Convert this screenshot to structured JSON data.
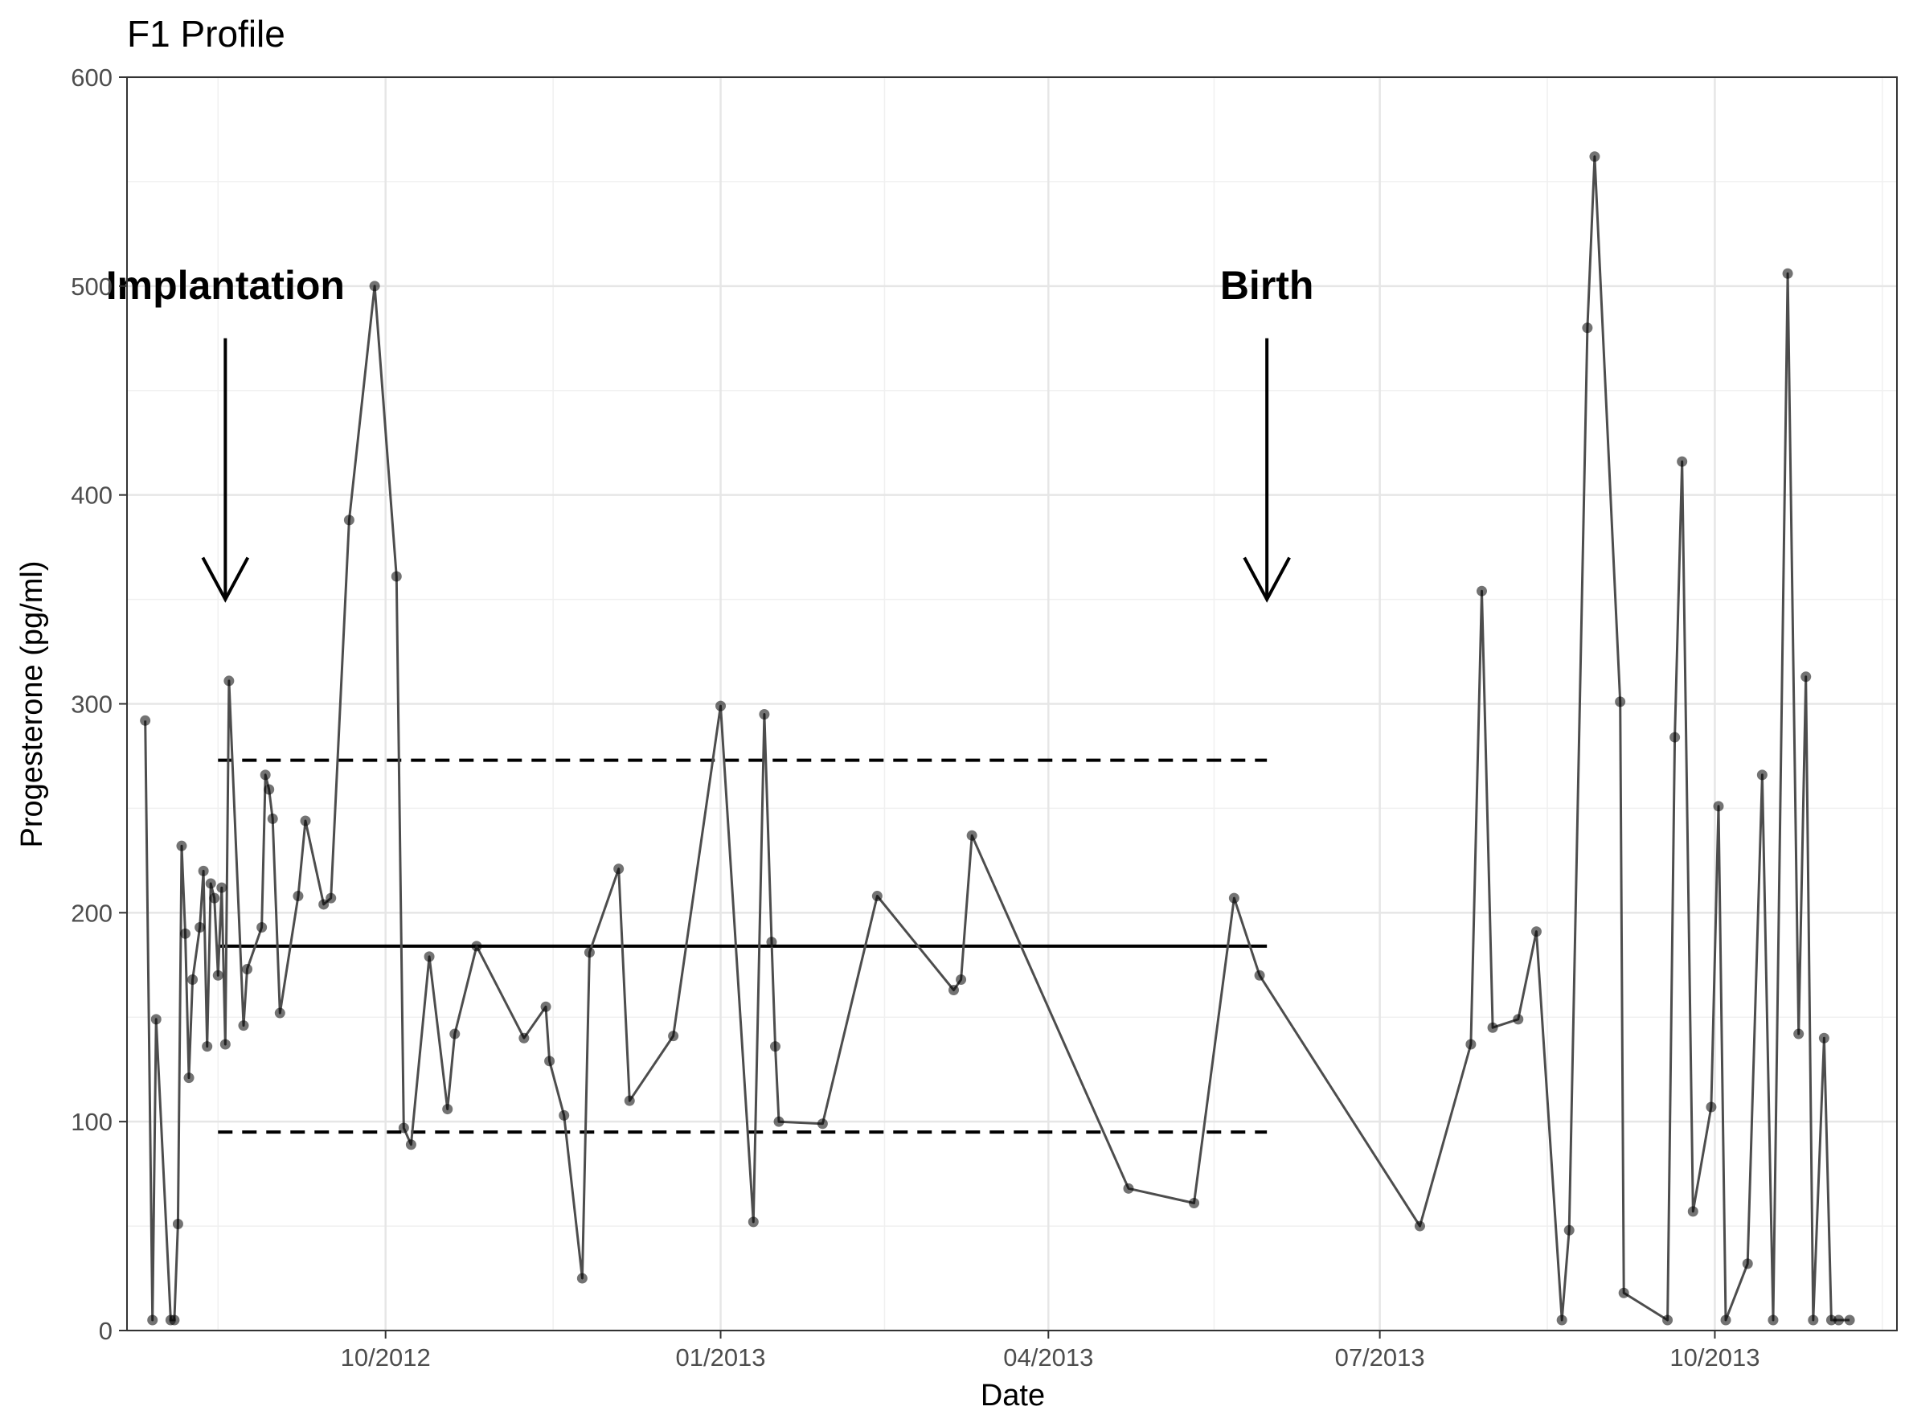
{
  "chart_data": {
    "type": "line",
    "title": "F1 Profile",
    "xlabel": "Date",
    "ylabel": "Progesterone (pg/ml)",
    "xlim": [
      "2012-07-22",
      "2013-11-20"
    ],
    "ylim": [
      0,
      600
    ],
    "x_ticks": [
      "2012-10-01",
      "2013-01-01",
      "2013-04-01",
      "2013-07-01",
      "2013-10-01"
    ],
    "x_tick_labels": [
      "10/2012",
      "01/2013",
      "04/2013",
      "07/2013",
      "10/2013"
    ],
    "y_ticks": [
      0,
      100,
      200,
      300,
      400,
      500,
      600
    ],
    "grid": true,
    "legend": "none",
    "series": [
      {
        "points": [
          [
            "2012-07-27",
            292
          ],
          [
            "2012-07-29",
            5
          ],
          [
            "2012-07-30",
            149
          ],
          [
            "2012-08-03",
            5
          ],
          [
            "2012-08-04",
            5
          ],
          [
            "2012-08-05",
            51
          ],
          [
            "2012-08-06",
            232
          ],
          [
            "2012-08-07",
            190
          ],
          [
            "2012-08-08",
            121
          ],
          [
            "2012-08-09",
            168
          ],
          [
            "2012-08-11",
            193
          ],
          [
            "2012-08-12",
            220
          ],
          [
            "2012-08-13",
            136
          ],
          [
            "2012-08-14",
            214
          ],
          [
            "2012-08-15",
            207
          ],
          [
            "2012-08-16",
            170
          ],
          [
            "2012-08-17",
            212
          ],
          [
            "2012-08-18",
            137
          ],
          [
            "2012-08-19",
            311
          ],
          [
            "2012-08-23",
            146
          ],
          [
            "2012-08-24",
            173
          ],
          [
            "2012-08-28",
            193
          ],
          [
            "2012-08-29",
            266
          ],
          [
            "2012-08-30",
            259
          ],
          [
            "2012-08-31",
            245
          ],
          [
            "2012-09-02",
            152
          ],
          [
            "2012-09-07",
            208
          ],
          [
            "2012-09-09",
            244
          ],
          [
            "2012-09-14",
            204
          ],
          [
            "2012-09-16",
            207
          ],
          [
            "2012-09-21",
            388
          ],
          [
            "2012-09-28",
            500
          ],
          [
            "2012-10-04",
            361
          ],
          [
            "2012-10-06",
            97
          ],
          [
            "2012-10-08",
            89
          ],
          [
            "2012-10-13",
            179
          ],
          [
            "2012-10-18",
            106
          ],
          [
            "2012-10-20",
            142
          ],
          [
            "2012-10-26",
            184
          ],
          [
            "2012-11-08",
            140
          ],
          [
            "2012-11-14",
            155
          ],
          [
            "2012-11-15",
            129
          ],
          [
            "2012-11-19",
            103
          ],
          [
            "2012-11-24",
            25
          ],
          [
            "2012-11-26",
            181
          ],
          [
            "2012-12-04",
            221
          ],
          [
            "2012-12-07",
            110
          ],
          [
            "2012-12-19",
            141
          ],
          [
            "2013-01-01",
            299
          ],
          [
            "2013-01-10",
            52
          ],
          [
            "2013-01-13",
            295
          ],
          [
            "2013-01-15",
            186
          ],
          [
            "2013-01-16",
            136
          ],
          [
            "2013-01-17",
            100
          ],
          [
            "2013-01-29",
            99
          ],
          [
            "2013-02-13",
            208
          ],
          [
            "2013-03-06",
            163
          ],
          [
            "2013-03-08",
            168
          ],
          [
            "2013-03-11",
            237
          ],
          [
            "2013-04-23",
            68
          ],
          [
            "2013-05-11",
            61
          ],
          [
            "2013-05-22",
            207
          ],
          [
            "2013-05-29",
            170
          ],
          [
            "2013-07-12",
            50
          ],
          [
            "2013-07-26",
            137
          ],
          [
            "2013-07-29",
            354
          ],
          [
            "2013-08-01",
            145
          ],
          [
            "2013-08-08",
            149
          ],
          [
            "2013-08-13",
            191
          ],
          [
            "2013-08-20",
            5
          ],
          [
            "2013-08-22",
            48
          ],
          [
            "2013-08-27",
            480
          ],
          [
            "2013-08-29",
            562
          ],
          [
            "2013-09-05",
            301
          ],
          [
            "2013-09-06",
            18
          ],
          [
            "2013-09-18",
            5
          ],
          [
            "2013-09-20",
            284
          ],
          [
            "2013-09-22",
            416
          ],
          [
            "2013-09-25",
            57
          ],
          [
            "2013-09-30",
            107
          ],
          [
            "2013-10-02",
            251
          ],
          [
            "2013-10-04",
            5
          ],
          [
            "2013-10-10",
            32
          ],
          [
            "2013-10-14",
            266
          ],
          [
            "2013-10-17",
            5
          ],
          [
            "2013-10-21",
            506
          ],
          [
            "2013-10-24",
            142
          ],
          [
            "2013-10-26",
            313
          ],
          [
            "2013-10-28",
            5
          ],
          [
            "2013-10-31",
            140
          ],
          [
            "2013-11-02",
            5
          ],
          [
            "2013-11-04",
            5
          ],
          [
            "2013-11-07",
            5
          ]
        ]
      }
    ],
    "reference_lines": [
      {
        "style": "solid",
        "y": 184,
        "x_start": "2012-08-16",
        "x_end": "2013-05-31"
      },
      {
        "style": "dashed",
        "y": 273,
        "x_start": "2012-08-16",
        "x_end": "2013-05-31"
      },
      {
        "style": "dashed",
        "y": 95,
        "x_start": "2012-08-16",
        "x_end": "2013-05-31"
      }
    ],
    "annotations": [
      {
        "label": "Implantation",
        "x": "2012-08-18",
        "arrow_from": 475,
        "arrow_to": 350
      },
      {
        "label": "Birth",
        "x": "2013-05-31",
        "arrow_from": 475,
        "arrow_to": 350
      }
    ]
  }
}
